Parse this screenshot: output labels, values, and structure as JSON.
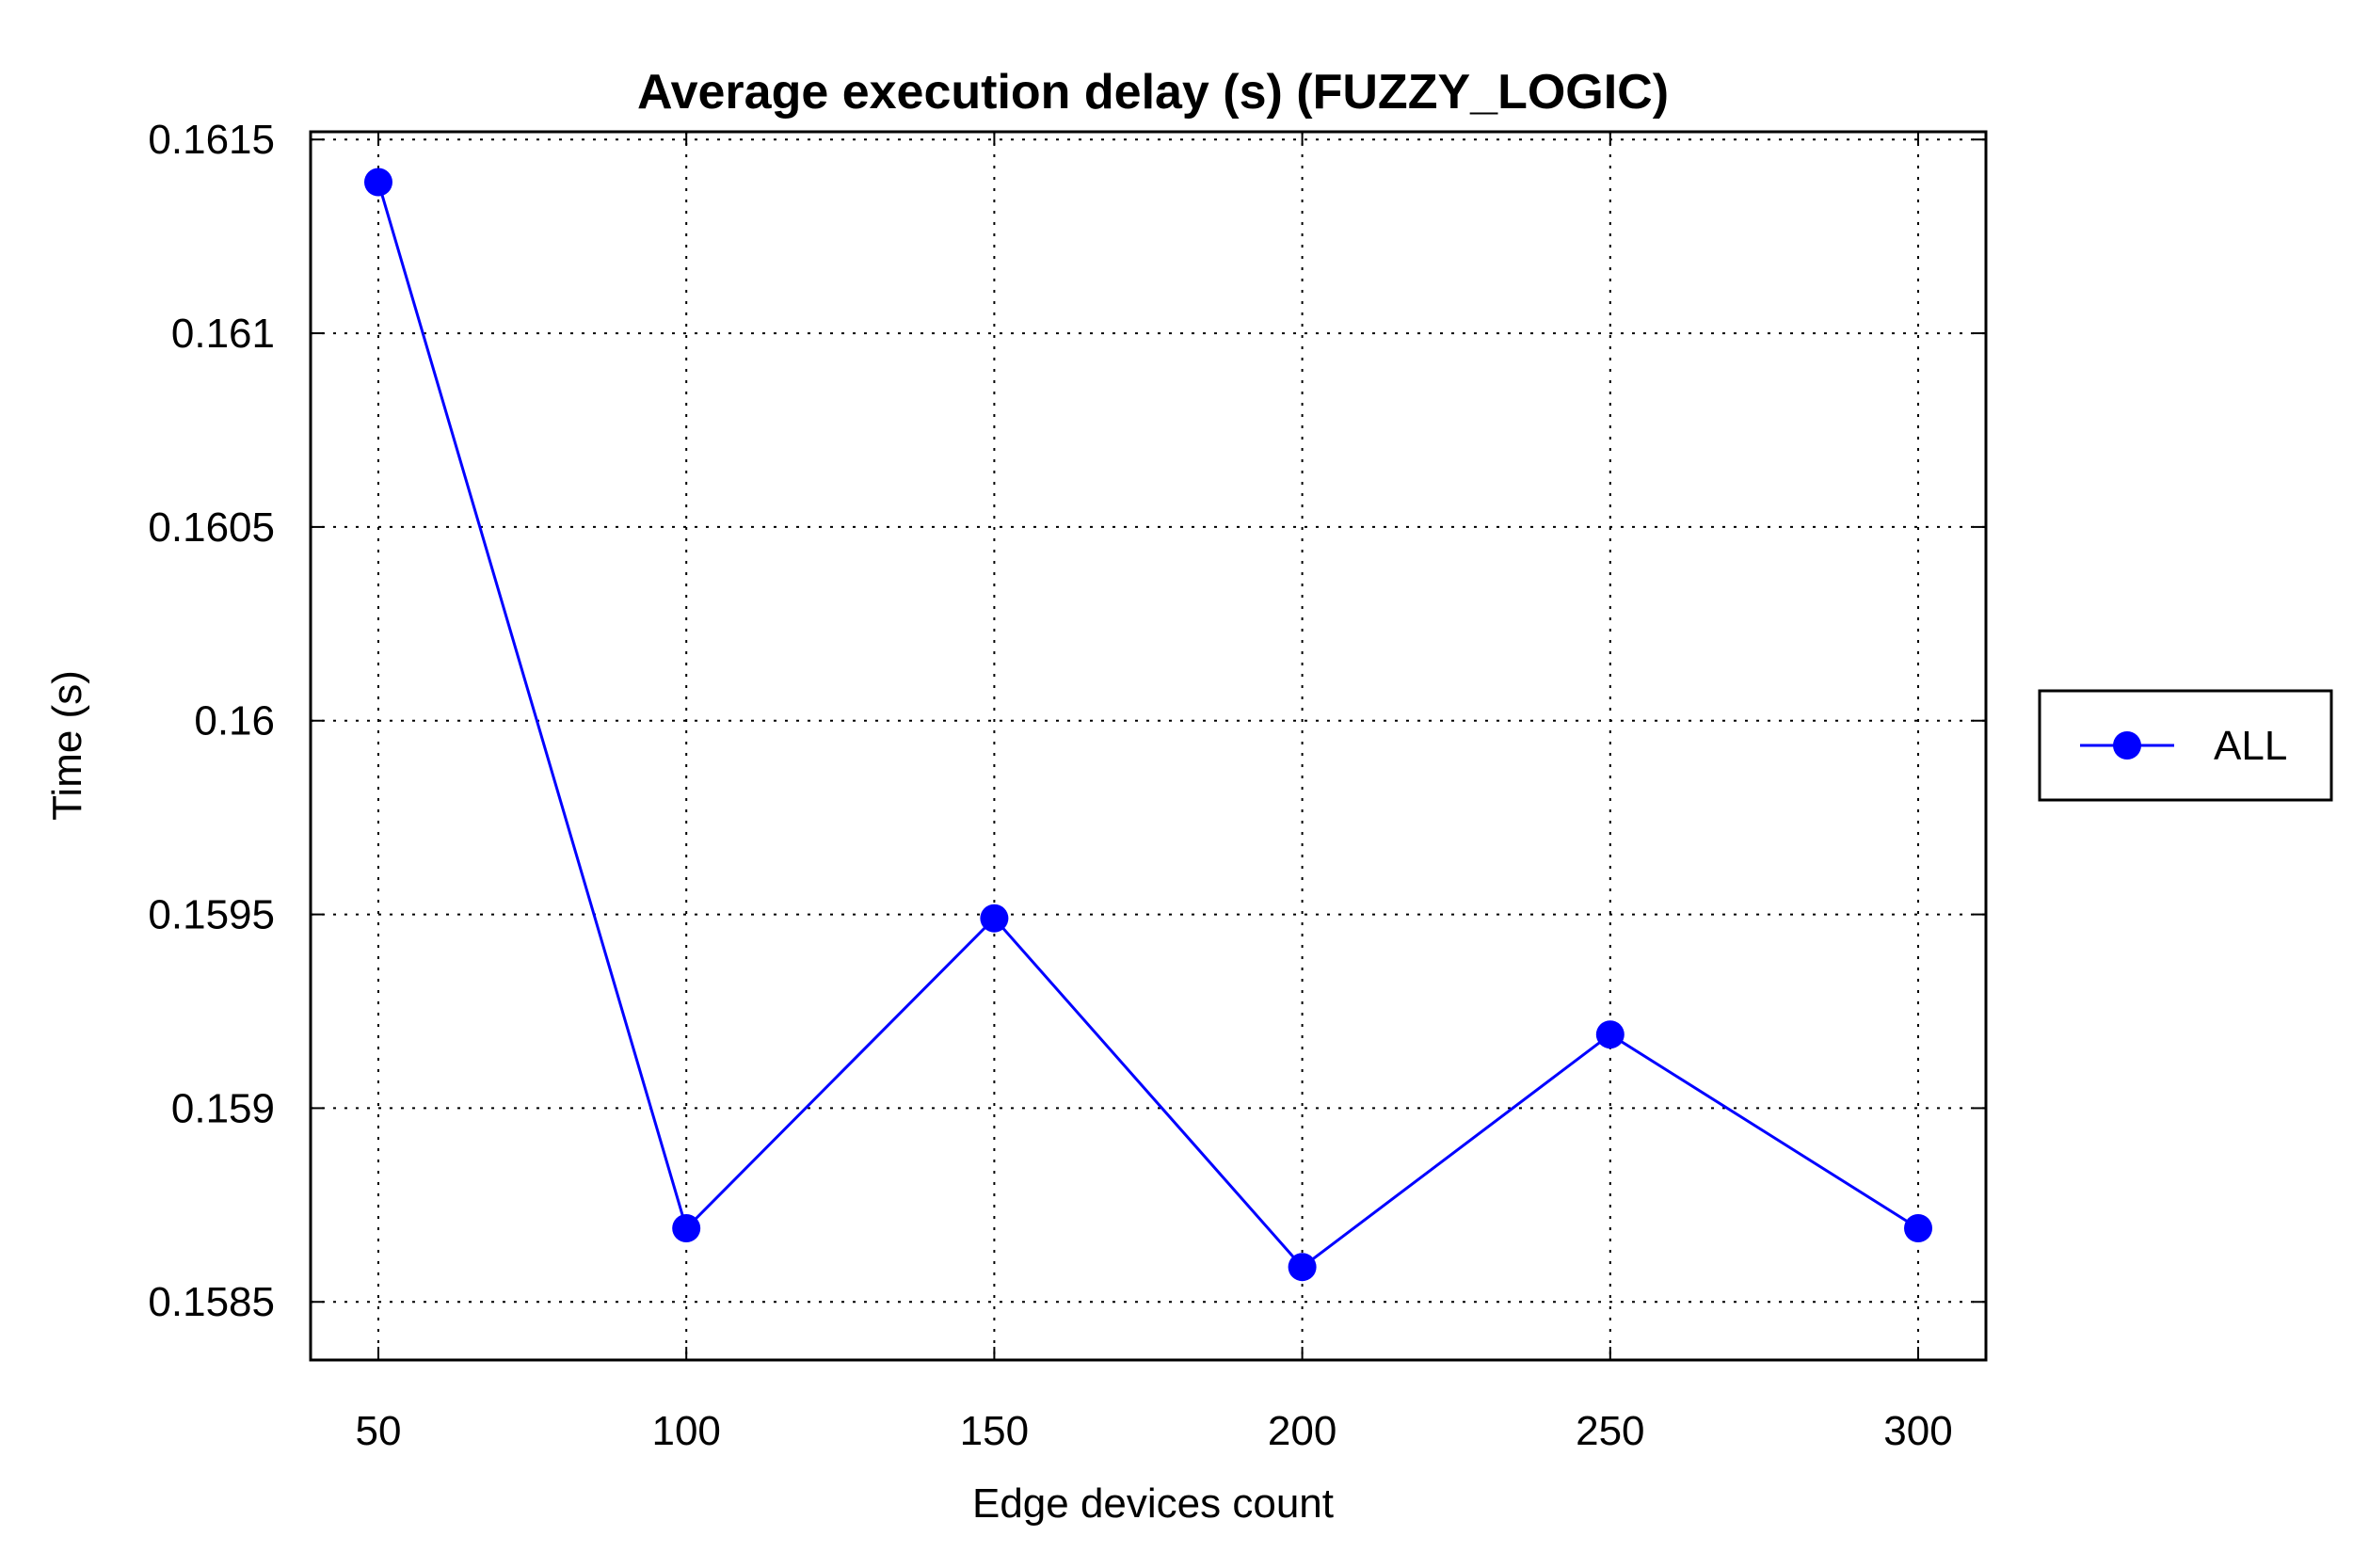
{
  "chart_data": {
    "type": "line",
    "title": "Average execution delay (s) (FUZZY_LOGIC)",
    "xlabel": "Edge devices count",
    "ylabel": "Time (s)",
    "x": [
      50,
      100,
      150,
      200,
      250,
      300
    ],
    "x_tick_labels": [
      "50",
      "100",
      "150",
      "200",
      "250",
      "300"
    ],
    "xlim": [
      39,
      311
    ],
    "ylim": [
      0.15835,
      0.16152
    ],
    "y_ticks": [
      0.1585,
      0.159,
      0.1595,
      0.16,
      0.1605,
      0.161,
      0.1615
    ],
    "y_tick_labels": [
      "0.1585",
      "0.159",
      "0.1595",
      "0.16",
      "0.1605",
      "0.161",
      "0.1615"
    ],
    "grid": true,
    "legend_position": "right",
    "series": [
      {
        "name": "ALL",
        "color": "#0000ff",
        "marker": "circle",
        "values": [
          0.16139,
          0.15869,
          0.15949,
          0.15859,
          0.15919,
          0.15869
        ]
      }
    ]
  }
}
